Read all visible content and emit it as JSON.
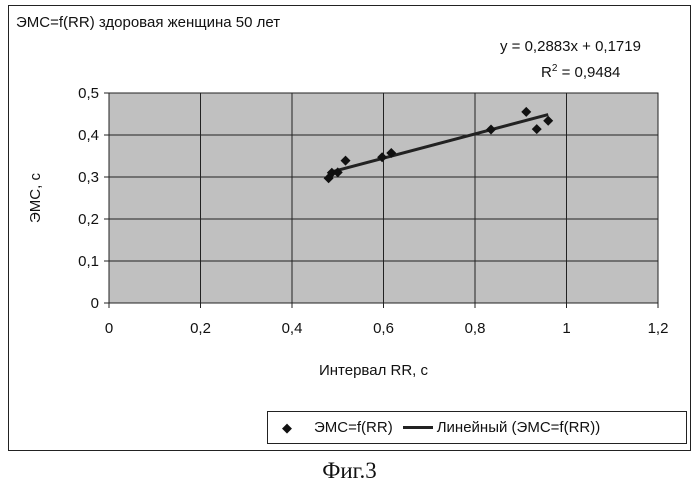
{
  "chart_data": {
    "type": "scatter",
    "title": "ЭМС=f(RR) здоровая женщина 50 лет",
    "xlabel": "Интервал RR, с",
    "ylabel": "ЭМС, с",
    "xlim": [
      0,
      1.2
    ],
    "ylim": [
      0,
      0.5
    ],
    "x_ticks": [
      "0",
      "0,2",
      "0,4",
      "0,6",
      "0,8",
      "1",
      "1,2"
    ],
    "y_ticks": [
      "0",
      "0,1",
      "0,2",
      "0,3",
      "0,4",
      "0,5"
    ],
    "grid": true,
    "series": [
      {
        "name": "ЭМС=f(RR)",
        "points": [
          {
            "x": 0.48,
            "y": 0.297
          },
          {
            "x": 0.487,
            "y": 0.31
          },
          {
            "x": 0.5,
            "y": 0.311
          },
          {
            "x": 0.517,
            "y": 0.339
          },
          {
            "x": 0.597,
            "y": 0.347
          },
          {
            "x": 0.617,
            "y": 0.357
          },
          {
            "x": 0.835,
            "y": 0.413
          },
          {
            "x": 0.912,
            "y": 0.455
          },
          {
            "x": 0.935,
            "y": 0.414
          },
          {
            "x": 0.96,
            "y": 0.434
          }
        ]
      }
    ],
    "trendline": {
      "name": "Линейный (ЭМС=f(RR))",
      "slope": 0.2883,
      "intercept": 0.1719,
      "x_range": [
        0.48,
        0.96
      ],
      "equation": "y = 0,2883x + 0,1719",
      "r2_label": "R",
      "r2_power": "2",
      "r2_value": " = 0,9484"
    },
    "legend_position": "bottom-right",
    "colors": {
      "plot_area": "#c0c0c0",
      "grid": "#222222",
      "marker": "#111111",
      "line": "#222222"
    }
  },
  "caption": "Фиг.3"
}
